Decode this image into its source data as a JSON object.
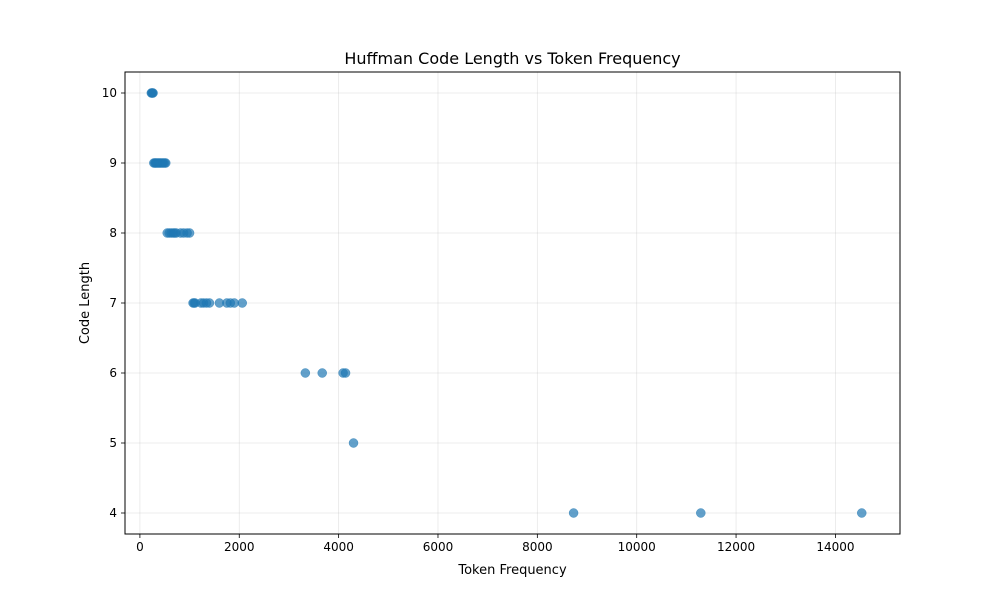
{
  "chart_data": {
    "type": "scatter",
    "title": "Huffman Code Length vs Token Frequency",
    "xlabel": "Token Frequency",
    "ylabel": "Code Length",
    "xlim": [
      -300,
      15300
    ],
    "ylim": [
      3.7,
      10.3
    ],
    "xticks": [
      0,
      2000,
      4000,
      6000,
      8000,
      10000,
      12000,
      14000
    ],
    "yticks": [
      4,
      5,
      6,
      7,
      8,
      9,
      10
    ],
    "grid": true,
    "point_color": "#1f77b4",
    "points": [
      {
        "x": 230,
        "y": 10
      },
      {
        "x": 240,
        "y": 10
      },
      {
        "x": 255,
        "y": 10
      },
      {
        "x": 265,
        "y": 10
      },
      {
        "x": 280,
        "y": 9
      },
      {
        "x": 300,
        "y": 9
      },
      {
        "x": 315,
        "y": 9
      },
      {
        "x": 330,
        "y": 9
      },
      {
        "x": 350,
        "y": 9
      },
      {
        "x": 370,
        "y": 9
      },
      {
        "x": 390,
        "y": 9
      },
      {
        "x": 410,
        "y": 9
      },
      {
        "x": 430,
        "y": 9
      },
      {
        "x": 455,
        "y": 9
      },
      {
        "x": 475,
        "y": 9
      },
      {
        "x": 500,
        "y": 9
      },
      {
        "x": 520,
        "y": 9
      },
      {
        "x": 550,
        "y": 8
      },
      {
        "x": 590,
        "y": 8
      },
      {
        "x": 630,
        "y": 8
      },
      {
        "x": 670,
        "y": 8
      },
      {
        "x": 700,
        "y": 8
      },
      {
        "x": 730,
        "y": 8
      },
      {
        "x": 820,
        "y": 8
      },
      {
        "x": 880,
        "y": 8
      },
      {
        "x": 950,
        "y": 8
      },
      {
        "x": 1000,
        "y": 8
      },
      {
        "x": 1070,
        "y": 7
      },
      {
        "x": 1090,
        "y": 7
      },
      {
        "x": 1110,
        "y": 7
      },
      {
        "x": 1230,
        "y": 7
      },
      {
        "x": 1280,
        "y": 7
      },
      {
        "x": 1340,
        "y": 7
      },
      {
        "x": 1400,
        "y": 7
      },
      {
        "x": 1600,
        "y": 7
      },
      {
        "x": 1750,
        "y": 7
      },
      {
        "x": 1820,
        "y": 7
      },
      {
        "x": 1900,
        "y": 7
      },
      {
        "x": 2060,
        "y": 7
      },
      {
        "x": 3330,
        "y": 6
      },
      {
        "x": 3670,
        "y": 6
      },
      {
        "x": 4090,
        "y": 6
      },
      {
        "x": 4140,
        "y": 6
      },
      {
        "x": 4300,
        "y": 5
      },
      {
        "x": 8730,
        "y": 4
      },
      {
        "x": 11290,
        "y": 4
      },
      {
        "x": 14530,
        "y": 4
      }
    ]
  }
}
